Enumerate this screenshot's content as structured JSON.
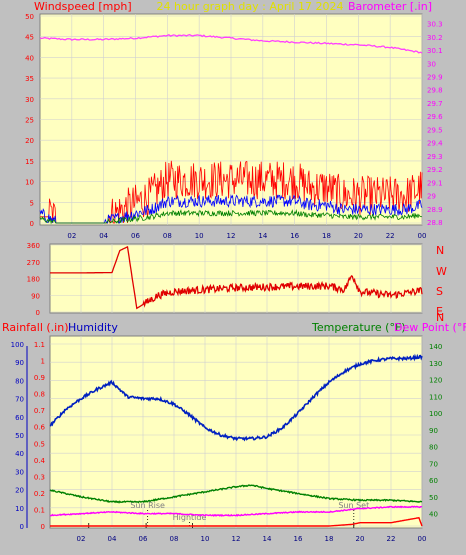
{
  "top": {
    "left_title": "Windspeed [mph]",
    "center_title": "24 hour graph day : April 17 2024",
    "right_title": "Barometer [.in]"
  },
  "middle": {
    "compass": [
      "N",
      "W",
      "S",
      "E",
      "N"
    ]
  },
  "bottom": {
    "left_title_rain": "Rainfall (.in)",
    "left_title_hum": "Humidity",
    "right_title_temp": "Temperature (°F)",
    "right_title_dew": "Dew Point (°F)",
    "annotations": [
      "Sun Rise",
      "Hightide",
      "Sun Set"
    ]
  },
  "colors": {
    "background": "#c0c0c0",
    "plot": "#ffffc0",
    "grid": "#d0d0d0",
    "wind_gust": "#ff0000",
    "wind_avg": "#0000ff",
    "wind_low": "#008000",
    "barometer": "#ff40ff",
    "direction": "#e00000",
    "humidity": "#0020c0",
    "temperature": "#008000",
    "dewpoint": "#ff00ff",
    "rainfall": "#ff0000",
    "title_red": "#ff0000",
    "title_yellow": "#e0e000",
    "title_blue": "#0000c0",
    "title_green": "#008000",
    "title_magenta": "#ff00ff"
  },
  "chart_data": [
    {
      "type": "line",
      "title": "24 hour graph day : April 17 2024",
      "x_ticks": [
        "02",
        "04",
        "06",
        "08",
        "10",
        "12",
        "14",
        "16",
        "18",
        "20",
        "22",
        "00"
      ],
      "left_axis": {
        "label": "Windspeed [mph]",
        "ticks": [
          0,
          5,
          10,
          15,
          20,
          25,
          30,
          35,
          40,
          45,
          50
        ],
        "ylim": [
          0,
          50
        ]
      },
      "right_axis": {
        "label": "Barometer [.in]",
        "ticks": [
          "28.8",
          "28.9",
          "29",
          "29.1",
          "29.2",
          "29.3",
          "29.4",
          "29.5",
          "29.6",
          "29.7",
          "29.8",
          "29.9",
          "30",
          "30.1",
          "30.2",
          "30.3"
        ],
        "ylim": [
          28.8,
          30.35
        ]
      },
      "grid": true,
      "series": [
        {
          "name": "Barometer [.in]",
          "axis": "right",
          "x": [
            0,
            2,
            4,
            6,
            8,
            10,
            12,
            14,
            16,
            18,
            20,
            22,
            24
          ],
          "values": [
            30.19,
            30.18,
            30.18,
            30.19,
            30.21,
            30.21,
            30.19,
            30.17,
            30.16,
            30.15,
            30.14,
            30.12,
            30.08
          ]
        },
        {
          "name": "Windspeed [mph]",
          "axis": "left",
          "x": [
            0,
            1,
            2,
            3,
            4,
            5,
            6,
            7,
            8,
            9,
            10,
            11,
            12,
            13,
            14,
            15,
            16,
            17,
            18,
            19,
            20,
            21,
            22,
            23,
            24
          ],
          "values": [
            2,
            0,
            0,
            0,
            0,
            1,
            2,
            3,
            5,
            5,
            5,
            5,
            5,
            5,
            5,
            5,
            5,
            4,
            4,
            3,
            3,
            3,
            3,
            3,
            4
          ]
        }
      ]
    },
    {
      "type": "line",
      "title": "",
      "y_ticks": [
        0,
        90,
        180,
        270,
        360
      ],
      "ylim": [
        0,
        360
      ],
      "grid": true,
      "series": [
        {
          "name": "",
          "x": [
            0,
            2,
            4,
            4.5,
            5,
            5.6,
            6,
            7,
            8,
            10,
            12,
            14,
            16,
            18,
            19,
            19.5,
            20,
            21,
            22,
            24
          ],
          "values": [
            210,
            210,
            212,
            330,
            350,
            20,
            40,
            90,
            110,
            120,
            130,
            135,
            138,
            140,
            120,
            200,
            110,
            100,
            90,
            115
          ]
        }
      ]
    },
    {
      "type": "line",
      "title": "",
      "left_axis": {
        "label": "Humidity",
        "ticks": [
          0,
          10,
          20,
          30,
          40,
          50,
          60,
          70,
          80,
          90,
          100
        ],
        "ylim": [
          0,
          100
        ]
      },
      "left_axis_rain": {
        "label": "Rainfall (.in)",
        "ticks": [
          "0",
          "0.1",
          "0.2",
          "0.3",
          "0.4",
          "0.5",
          "0.6",
          "0.7",
          "0.8",
          "0.9",
          "1",
          "1.1"
        ],
        "ylim": [
          0,
          1.1
        ]
      },
      "right_axis": {
        "label": "Temperature (°F)",
        "ticks": [
          40,
          50,
          60,
          70,
          80,
          90,
          100,
          110,
          120,
          130,
          140
        ],
        "ylim": [
          35,
          140
        ]
      },
      "grid": true,
      "annotations": [
        {
          "text": "Sun Rise",
          "x": 6.3
        },
        {
          "text": "Hightide",
          "x": 9.0
        },
        {
          "text": "Sun Set",
          "x": 19.6
        }
      ],
      "series": [
        {
          "name": "Humidity",
          "axis": "left",
          "x": [
            0,
            1,
            2,
            3,
            4,
            4.5,
            5,
            6,
            7,
            8,
            9,
            10,
            11,
            12,
            13,
            14,
            15,
            16,
            17,
            18,
            19,
            20,
            21,
            22,
            23,
            24
          ],
          "values": [
            55,
            64,
            70,
            75,
            79,
            75,
            71,
            70,
            70,
            67,
            61,
            54,
            50,
            48,
            48,
            49,
            54,
            62,
            71,
            79,
            85,
            89,
            91,
            92,
            92,
            93
          ]
        },
        {
          "name": "Temperature (°F)",
          "axis": "right",
          "x": [
            0,
            2,
            4,
            6,
            8,
            10,
            12,
            13,
            14,
            16,
            18,
            20,
            22,
            24
          ],
          "values": [
            54,
            50,
            47,
            47,
            50,
            53,
            56,
            57,
            55,
            52,
            49,
            48,
            48,
            47
          ]
        },
        {
          "name": "Dew Point (°F)",
          "axis": "right",
          "x": [
            0,
            2,
            4,
            6,
            8,
            10,
            12,
            14,
            16,
            18,
            20,
            22,
            24
          ],
          "values": [
            39,
            40,
            41,
            40,
            40,
            39,
            39,
            40,
            41,
            41,
            43,
            44,
            44
          ]
        },
        {
          "name": "Rainfall (.in)",
          "axis": "rain",
          "x": [
            0,
            18,
            19.5,
            20,
            22,
            23.8,
            24
          ],
          "values": [
            0,
            0,
            0.01,
            0.02,
            0.02,
            0.05,
            0.0
          ]
        }
      ]
    }
  ]
}
